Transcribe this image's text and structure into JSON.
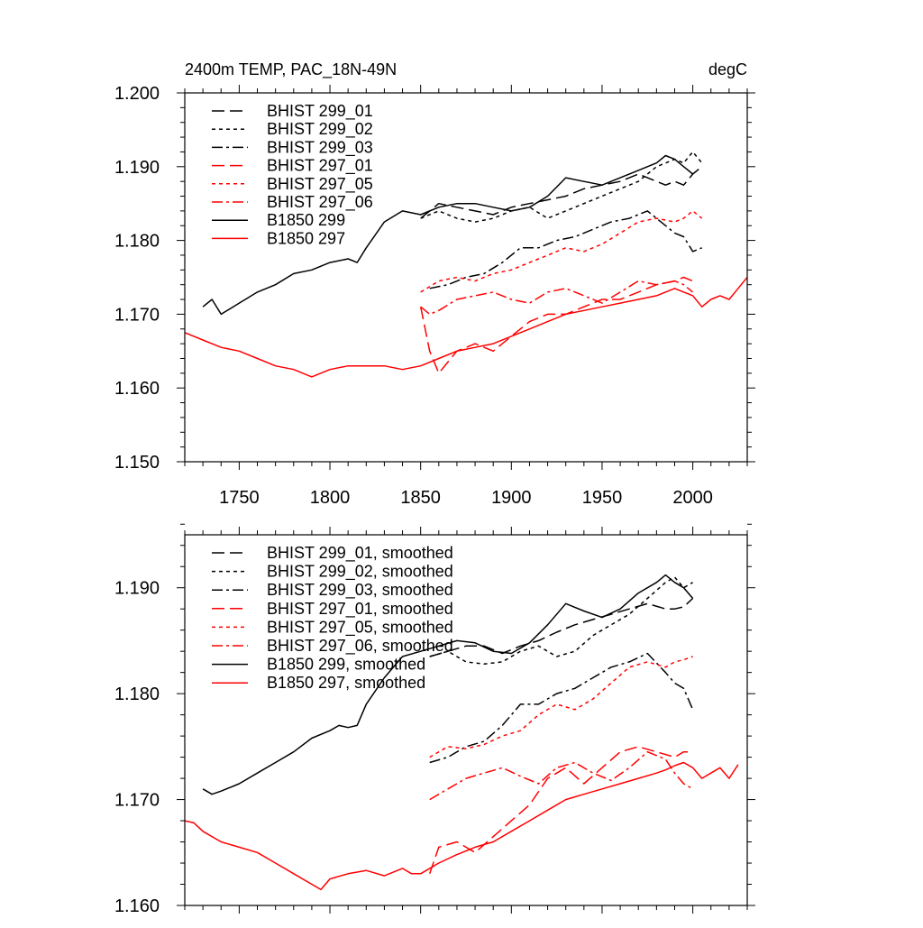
{
  "chart_data": [
    {
      "type": "line",
      "title": "2400m TEMP, PAC_18N-49N",
      "units": "degC",
      "xlim": [
        1720,
        2030
      ],
      "ylim": [
        1.15,
        1.2
      ],
      "xticks": [
        1750,
        1800,
        1850,
        1900,
        1950,
        2000
      ],
      "xtick_labels": [
        "1750",
        "1800",
        "1850",
        "1900",
        "1950",
        "2000"
      ],
      "yticks": [
        1.15,
        1.16,
        1.17,
        1.18,
        1.19,
        1.2
      ],
      "ytick_labels": [
        "1.150",
        "1.160",
        "1.170",
        "1.180",
        "1.190",
        "1.200"
      ],
      "legend_position": "top-left",
      "series": [
        {
          "name": "BHIST 299_01",
          "color": "#000000",
          "dash": "dash",
          "x": [
            1850,
            1860,
            1870,
            1880,
            1890,
            1900,
            1910,
            1920,
            1930,
            1940,
            1950,
            1960,
            1970,
            1980,
            1985,
            1990,
            1995,
            2000,
            2005
          ],
          "y": [
            1.183,
            1.185,
            1.1845,
            1.184,
            1.1835,
            1.1845,
            1.185,
            1.1855,
            1.186,
            1.187,
            1.1875,
            1.188,
            1.189,
            1.188,
            1.1875,
            1.188,
            1.1875,
            1.189,
            1.19
          ]
        },
        {
          "name": "BHIST 299_02",
          "color": "#000000",
          "dash": "dot",
          "x": [
            1850,
            1860,
            1870,
            1880,
            1890,
            1900,
            1910,
            1920,
            1930,
            1940,
            1950,
            1960,
            1970,
            1980,
            1990,
            1995,
            2000,
            2005
          ],
          "y": [
            1.183,
            1.184,
            1.183,
            1.1825,
            1.183,
            1.184,
            1.1845,
            1.183,
            1.184,
            1.185,
            1.186,
            1.187,
            1.188,
            1.19,
            1.191,
            1.1905,
            1.192,
            1.1905
          ]
        },
        {
          "name": "BHIST 299_03",
          "color": "#000000",
          "dash": "dashdot",
          "x": [
            1855,
            1865,
            1875,
            1885,
            1895,
            1905,
            1915,
            1925,
            1935,
            1945,
            1955,
            1965,
            1975,
            1985,
            1990,
            1995,
            2000,
            2005
          ],
          "y": [
            1.1735,
            1.174,
            1.175,
            1.1755,
            1.177,
            1.179,
            1.179,
            1.18,
            1.1805,
            1.1815,
            1.1825,
            1.183,
            1.184,
            1.182,
            1.181,
            1.1805,
            1.1785,
            1.179
          ]
        },
        {
          "name": "BHIST 297_01",
          "color": "#ff0000",
          "dash": "dash",
          "x": [
            1850,
            1855,
            1860,
            1870,
            1880,
            1890,
            1900,
            1910,
            1920,
            1930,
            1940,
            1950,
            1960,
            1970,
            1980,
            1990,
            1995,
            2000
          ],
          "y": [
            1.171,
            1.165,
            1.162,
            1.165,
            1.166,
            1.165,
            1.167,
            1.169,
            1.17,
            1.17,
            1.171,
            1.172,
            1.172,
            1.173,
            1.174,
            1.1745,
            1.175,
            1.1745
          ]
        },
        {
          "name": "BHIST 297_05",
          "color": "#ff0000",
          "dash": "dot",
          "x": [
            1850,
            1860,
            1870,
            1880,
            1890,
            1900,
            1910,
            1920,
            1930,
            1940,
            1950,
            1960,
            1970,
            1980,
            1990,
            1995,
            2000,
            2005
          ],
          "y": [
            1.173,
            1.1745,
            1.175,
            1.1745,
            1.1755,
            1.176,
            1.177,
            1.178,
            1.179,
            1.1785,
            1.1795,
            1.181,
            1.1825,
            1.183,
            1.1825,
            1.183,
            1.184,
            1.183
          ]
        },
        {
          "name": "BHIST 297_06",
          "color": "#ff0000",
          "dash": "dashdot",
          "x": [
            1850,
            1855,
            1860,
            1870,
            1880,
            1890,
            1900,
            1910,
            1920,
            1930,
            1940,
            1950,
            1960,
            1970,
            1980,
            1990,
            1995,
            2000
          ],
          "y": [
            1.171,
            1.17,
            1.1705,
            1.172,
            1.1725,
            1.173,
            1.172,
            1.1715,
            1.173,
            1.1735,
            1.1725,
            1.1715,
            1.173,
            1.1745,
            1.174,
            1.1745,
            1.174,
            1.173
          ]
        },
        {
          "name": "B1850 299",
          "color": "#000000",
          "dash": "solid",
          "x": [
            1730,
            1735,
            1740,
            1750,
            1760,
            1770,
            1780,
            1790,
            1800,
            1810,
            1815,
            1820,
            1830,
            1840,
            1850,
            1860,
            1870,
            1880,
            1890,
            1900,
            1910,
            1920,
            1930,
            1940,
            1950,
            1960,
            1970,
            1980,
            1985,
            1990,
            1995,
            2000
          ],
          "y": [
            1.171,
            1.172,
            1.17,
            1.1715,
            1.173,
            1.174,
            1.1755,
            1.176,
            1.177,
            1.1775,
            1.177,
            1.179,
            1.1825,
            1.184,
            1.1835,
            1.1845,
            1.185,
            1.185,
            1.1845,
            1.184,
            1.1845,
            1.186,
            1.1885,
            1.188,
            1.1875,
            1.1885,
            1.1895,
            1.1905,
            1.1915,
            1.191,
            1.19,
            1.189
          ]
        },
        {
          "name": "B1850 297",
          "color": "#ff0000",
          "dash": "solid",
          "x": [
            1720,
            1730,
            1740,
            1750,
            1760,
            1770,
            1780,
            1790,
            1800,
            1810,
            1820,
            1830,
            1840,
            1850,
            1860,
            1870,
            1880,
            1890,
            1900,
            1910,
            1920,
            1930,
            1940,
            1950,
            1960,
            1970,
            1980,
            1990,
            2000,
            2005,
            2010,
            2015,
            2020,
            2025,
            2030
          ],
          "y": [
            1.1675,
            1.1665,
            1.1655,
            1.165,
            1.164,
            1.163,
            1.1625,
            1.1615,
            1.1625,
            1.163,
            1.163,
            1.163,
            1.1625,
            1.163,
            1.164,
            1.165,
            1.1655,
            1.166,
            1.167,
            1.168,
            1.169,
            1.17,
            1.1705,
            1.171,
            1.1715,
            1.172,
            1.1725,
            1.1735,
            1.1725,
            1.171,
            1.172,
            1.1725,
            1.172,
            1.1735,
            1.175
          ]
        }
      ]
    },
    {
      "type": "line",
      "xlim": [
        1720,
        2030
      ],
      "ylim": [
        1.16,
        1.195
      ],
      "xticks": [
        1750,
        1800,
        1850,
        1900,
        1950,
        2000
      ],
      "yticks": [
        1.16,
        1.17,
        1.18,
        1.19
      ],
      "ytick_labels": [
        "1.160",
        "1.170",
        "1.180",
        "1.190"
      ],
      "legend_position": "top-left",
      "series": [
        {
          "name": "BHIST 299_01, smoothed",
          "color": "#000000",
          "dash": "dash",
          "x": [
            1855,
            1865,
            1875,
            1885,
            1895,
            1905,
            1915,
            1925,
            1935,
            1945,
            1955,
            1965,
            1975,
            1985,
            1990,
            1995,
            2000
          ],
          "y": [
            1.1835,
            1.184,
            1.1845,
            1.1845,
            1.1838,
            1.1845,
            1.185,
            1.1858,
            1.1865,
            1.187,
            1.1875,
            1.188,
            1.1885,
            1.188,
            1.188,
            1.1882,
            1.189
          ]
        },
        {
          "name": "BHIST 299_02, smoothed",
          "color": "#000000",
          "dash": "dot",
          "x": [
            1855,
            1865,
            1875,
            1885,
            1895,
            1905,
            1915,
            1925,
            1935,
            1945,
            1955,
            1965,
            1975,
            1985,
            1990,
            1995,
            2000
          ],
          "y": [
            1.1835,
            1.184,
            1.183,
            1.1828,
            1.183,
            1.184,
            1.1845,
            1.1835,
            1.184,
            1.1855,
            1.1865,
            1.1875,
            1.189,
            1.1905,
            1.191,
            1.19,
            1.1905
          ]
        },
        {
          "name": "BHIST 299_03, smoothed",
          "color": "#000000",
          "dash": "dashdot",
          "x": [
            1855,
            1865,
            1875,
            1885,
            1895,
            1905,
            1915,
            1925,
            1935,
            1945,
            1955,
            1965,
            1975,
            1985,
            1990,
            1995,
            2000
          ],
          "y": [
            1.1735,
            1.174,
            1.175,
            1.1755,
            1.177,
            1.179,
            1.179,
            1.18,
            1.1805,
            1.1815,
            1.1825,
            1.183,
            1.1838,
            1.182,
            1.181,
            1.1805,
            1.1785
          ]
        },
        {
          "name": "BHIST 297_01, smoothed",
          "color": "#ff0000",
          "dash": "dash",
          "x": [
            1855,
            1860,
            1870,
            1880,
            1890,
            1900,
            1910,
            1920,
            1930,
            1940,
            1950,
            1960,
            1970,
            1980,
            1990,
            1995,
            2000
          ],
          "y": [
            1.163,
            1.1655,
            1.166,
            1.165,
            1.1665,
            1.168,
            1.1695,
            1.172,
            1.173,
            1.1715,
            1.173,
            1.1745,
            1.175,
            1.1745,
            1.174,
            1.1745,
            1.1745
          ]
        },
        {
          "name": "BHIST 297_05, smoothed",
          "color": "#ff0000",
          "dash": "dot",
          "x": [
            1855,
            1865,
            1875,
            1885,
            1895,
            1905,
            1915,
            1925,
            1935,
            1945,
            1955,
            1965,
            1975,
            1985,
            1990,
            1995,
            2000
          ],
          "y": [
            1.174,
            1.175,
            1.1748,
            1.1752,
            1.176,
            1.1765,
            1.178,
            1.179,
            1.1785,
            1.1795,
            1.181,
            1.1825,
            1.183,
            1.1825,
            1.183,
            1.1832,
            1.1835
          ]
        },
        {
          "name": "BHIST 297_06, smoothed",
          "color": "#ff0000",
          "dash": "dashdot",
          "x": [
            1855,
            1865,
            1875,
            1885,
            1895,
            1905,
            1915,
            1925,
            1935,
            1945,
            1955,
            1965,
            1975,
            1985,
            1990,
            1995,
            2000
          ],
          "y": [
            1.17,
            1.171,
            1.172,
            1.1725,
            1.173,
            1.1722,
            1.1715,
            1.173,
            1.1735,
            1.1725,
            1.1718,
            1.173,
            1.1745,
            1.1738,
            1.1725,
            1.1715,
            1.171
          ]
        },
        {
          "name": "B1850 299, smoothed",
          "color": "#000000",
          "dash": "solid",
          "x": [
            1730,
            1735,
            1740,
            1750,
            1760,
            1770,
            1780,
            1790,
            1800,
            1805,
            1810,
            1815,
            1820,
            1830,
            1840,
            1850,
            1860,
            1870,
            1880,
            1890,
            1900,
            1910,
            1920,
            1930,
            1940,
            1950,
            1960,
            1970,
            1980,
            1985,
            1990,
            1995,
            2000
          ],
          "y": [
            1.171,
            1.1705,
            1.1708,
            1.1715,
            1.1725,
            1.1735,
            1.1745,
            1.1758,
            1.1765,
            1.177,
            1.1768,
            1.177,
            1.179,
            1.1815,
            1.1835,
            1.184,
            1.1845,
            1.185,
            1.1848,
            1.184,
            1.1838,
            1.1848,
            1.1865,
            1.1885,
            1.1878,
            1.1872,
            1.188,
            1.1895,
            1.1905,
            1.1912,
            1.1905,
            1.19,
            1.189
          ]
        },
        {
          "name": "B1850 297, smoothed",
          "color": "#ff0000",
          "dash": "solid",
          "x": [
            1720,
            1725,
            1730,
            1740,
            1750,
            1760,
            1770,
            1780,
            1790,
            1795,
            1800,
            1810,
            1820,
            1830,
            1840,
            1845,
            1850,
            1860,
            1870,
            1880,
            1890,
            1900,
            1910,
            1920,
            1930,
            1940,
            1950,
            1960,
            1970,
            1980,
            1985,
            1990,
            1995,
            2000,
            2005,
            2010,
            2015,
            2020,
            2025
          ],
          "y": [
            1.168,
            1.1678,
            1.167,
            1.166,
            1.1655,
            1.165,
            1.164,
            1.163,
            1.162,
            1.1615,
            1.1625,
            1.163,
            1.1633,
            1.1628,
            1.1635,
            1.163,
            1.163,
            1.164,
            1.1648,
            1.1655,
            1.166,
            1.167,
            1.168,
            1.169,
            1.17,
            1.1705,
            1.171,
            1.1715,
            1.172,
            1.1725,
            1.1728,
            1.1732,
            1.1735,
            1.173,
            1.172,
            1.1725,
            1.173,
            1.172,
            1.1733
          ]
        }
      ]
    }
  ]
}
